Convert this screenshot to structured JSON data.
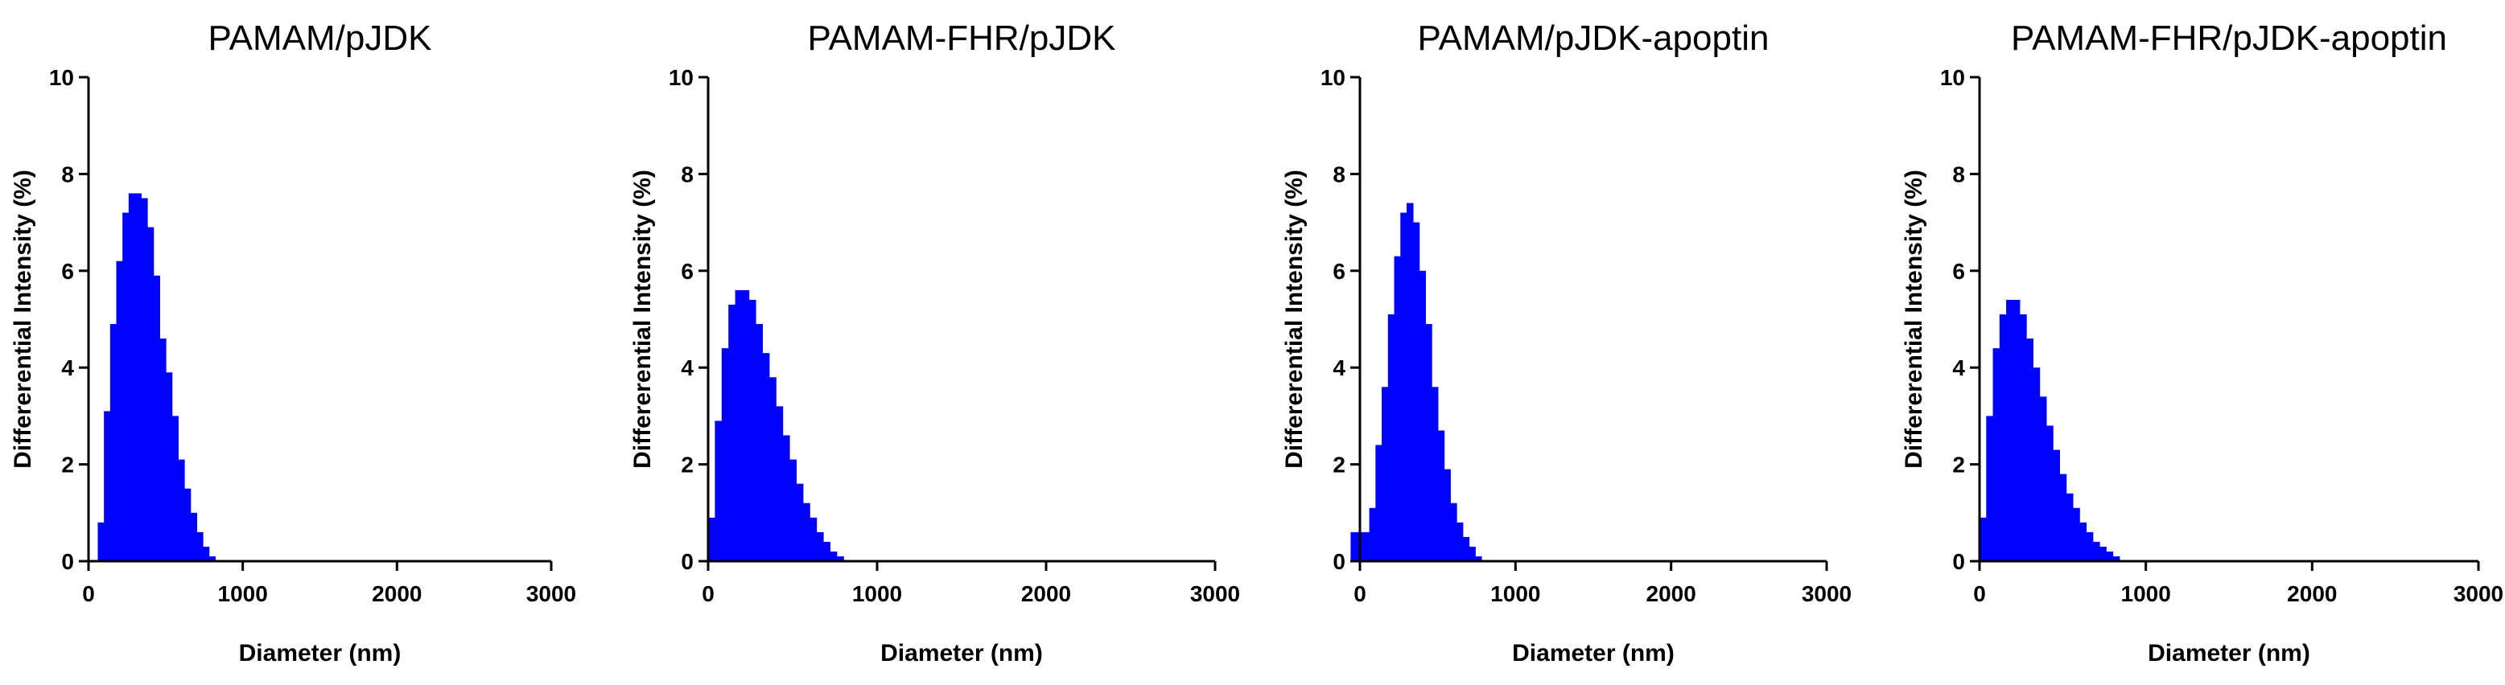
{
  "chart_data": [
    {
      "type": "bar",
      "title": "PAMAM/pJDK",
      "xlabel": "Diameter (nm)",
      "ylabel": "Differerential Intensity (%)",
      "xlim": [
        0,
        3000
      ],
      "ylim": [
        0,
        10
      ],
      "xticks": [
        "0",
        "1000",
        "2000",
        "3000"
      ],
      "yticks": [
        "0",
        "2",
        "4",
        "6",
        "8",
        "10"
      ],
      "grid": false,
      "legend": "none",
      "color": "#0000ff",
      "x": [
        80,
        120,
        160,
        200,
        240,
        280,
        320,
        360,
        400,
        440,
        480,
        520,
        560,
        600,
        640,
        680,
        720,
        760,
        800
      ],
      "values": [
        0.8,
        3.1,
        4.9,
        6.2,
        7.2,
        7.6,
        7.6,
        7.5,
        6.9,
        5.9,
        4.6,
        3.9,
        3.0,
        2.1,
        1.5,
        1.0,
        0.6,
        0.3,
        0.1
      ]
    },
    {
      "type": "bar",
      "title": "PAMAM-FHR/pJDK",
      "xlabel": "Diameter (nm)",
      "ylabel": "Differerential Intensity (%)",
      "xlim": [
        0,
        3000
      ],
      "ylim": [
        0,
        10
      ],
      "xticks": [
        "0",
        "1000",
        "2000",
        "3000"
      ],
      "yticks": [
        "0",
        "2",
        "4",
        "6",
        "8",
        "10"
      ],
      "grid": false,
      "legend": "none",
      "color": "#0000ff",
      "x": [
        20,
        60,
        100,
        140,
        180,
        220,
        260,
        300,
        340,
        380,
        420,
        460,
        500,
        540,
        580,
        620,
        660,
        700,
        740,
        780
      ],
      "values": [
        0.9,
        2.9,
        4.4,
        5.3,
        5.6,
        5.6,
        5.4,
        4.9,
        4.3,
        3.8,
        3.2,
        2.6,
        2.1,
        1.6,
        1.2,
        0.9,
        0.6,
        0.4,
        0.2,
        0.1
      ]
    },
    {
      "type": "bar",
      "title": "PAMAM/pJDK-apoptin",
      "xlabel": "Diameter (nm)",
      "ylabel": "Differerential Intensity (%)",
      "xlim": [
        0,
        3000
      ],
      "ylim": [
        0,
        10
      ],
      "xticks": [
        "0",
        "1000",
        "2000",
        "3000"
      ],
      "yticks": [
        "0",
        "2",
        "4",
        "6",
        "8",
        "10"
      ],
      "grid": false,
      "legend": "none",
      "color": "#0000ff",
      "x": [
        -40,
        0,
        40,
        80,
        120,
        160,
        200,
        240,
        280,
        320,
        360,
        400,
        440,
        480,
        520,
        560,
        600,
        640,
        680,
        720,
        760
      ],
      "values": [
        0.6,
        0.6,
        0.6,
        1.1,
        2.4,
        3.6,
        5.1,
        6.3,
        7.2,
        7.4,
        7.0,
        6.0,
        4.9,
        3.6,
        2.7,
        1.9,
        1.2,
        0.8,
        0.5,
        0.3,
        0.1
      ]
    },
    {
      "type": "bar",
      "title": "PAMAM-FHR/pJDK-apoptin",
      "xlabel": "Diameter (nm)",
      "ylabel": "Differerential Intensity (%)",
      "xlim": [
        0,
        3000
      ],
      "ylim": [
        0,
        10
      ],
      "xticks": [
        "0",
        "1000",
        "2000",
        "3000"
      ],
      "yticks": [
        "0",
        "2",
        "4",
        "6",
        "8",
        "10"
      ],
      "grid": false,
      "legend": "none",
      "color": "#0000ff",
      "x": [
        20,
        60,
        100,
        140,
        180,
        220,
        260,
        300,
        340,
        380,
        420,
        460,
        500,
        540,
        580,
        620,
        660,
        700,
        740,
        780,
        820
      ],
      "values": [
        0.9,
        3.0,
        4.4,
        5.1,
        5.4,
        5.4,
        5.1,
        4.6,
        4.0,
        3.4,
        2.8,
        2.3,
        1.8,
        1.4,
        1.1,
        0.8,
        0.6,
        0.4,
        0.3,
        0.2,
        0.1
      ]
    }
  ]
}
